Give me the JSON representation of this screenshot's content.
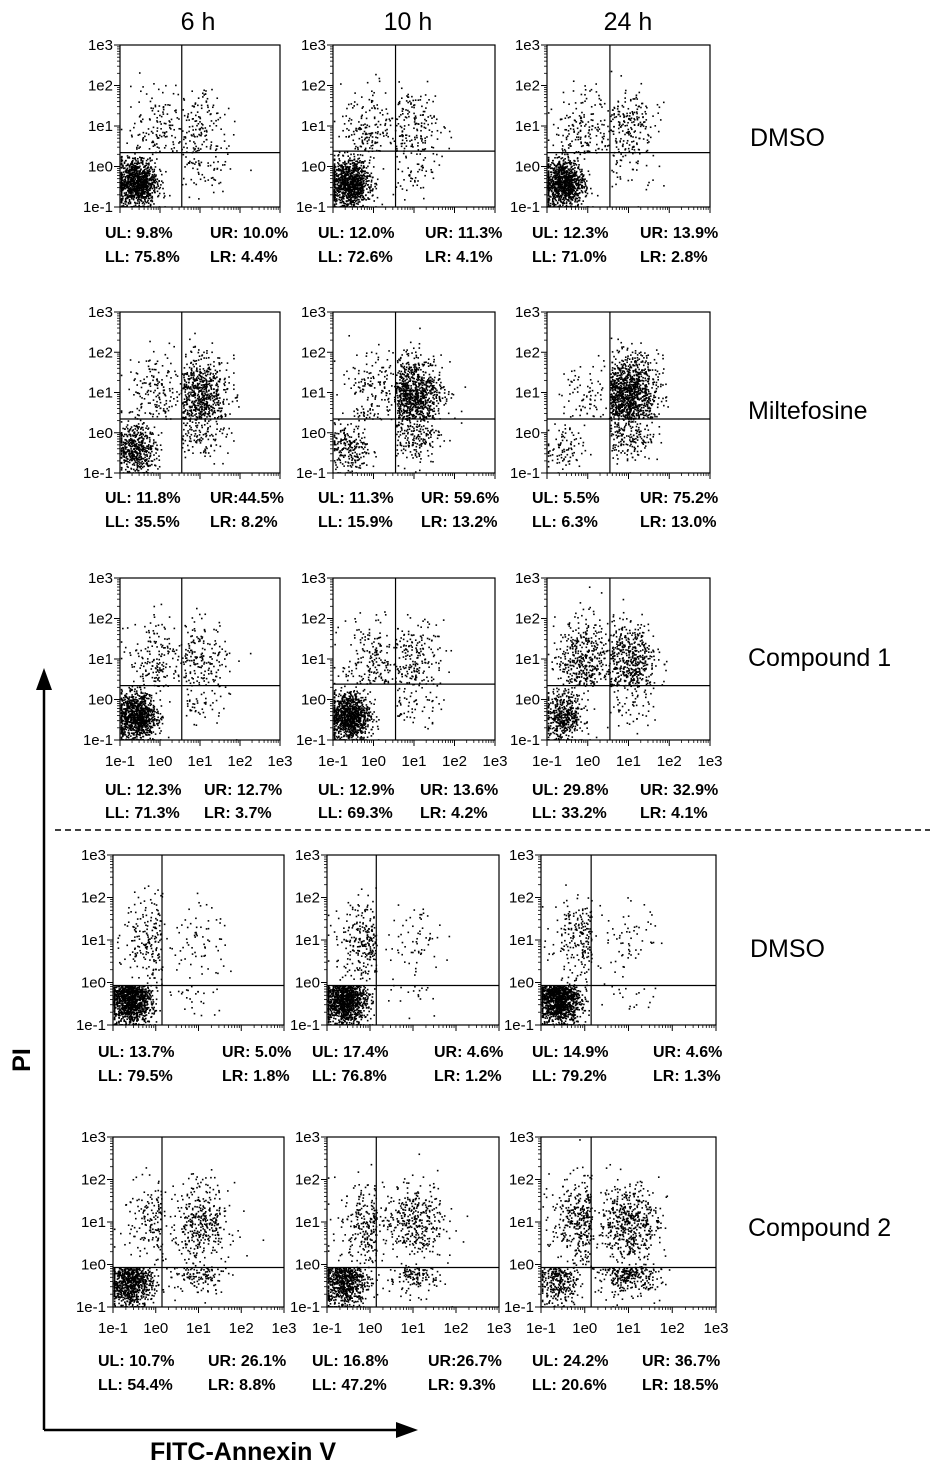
{
  "columns": [
    "6 h",
    "10 h",
    "24 h"
  ],
  "rows": [
    "DMSO",
    "Miltefosine",
    "Compound 1",
    "DMSO",
    "Compound 2"
  ],
  "axis_labels": {
    "x": "FITC-Annexin V",
    "y": "PI"
  },
  "tick_labels": [
    "1e-1",
    "1e0",
    "1e1",
    "1e2",
    "1e3"
  ],
  "chart_data": {
    "type": "scatter",
    "xscale": "log",
    "yscale": "log",
    "xlim": [
      0.1,
      1000
    ],
    "ylim": [
      0.1,
      1000
    ],
    "xlabel": "FITC-Annexin V",
    "ylabel": "PI",
    "panels": [
      {
        "row": "DMSO",
        "time": "6 h",
        "gate_x": 3.5,
        "gate_y": 2.2,
        "stats": [
          [
            "UL: 9.8%",
            "UR: 10.0%"
          ],
          [
            "LL: 75.8%",
            "LR: 4.4%"
          ]
        ]
      },
      {
        "row": "DMSO",
        "time": "10 h",
        "gate_x": 3.5,
        "gate_y": 2.4,
        "stats": [
          [
            "UL: 12.0%",
            "UR: 11.3%"
          ],
          [
            "LL: 72.6%",
            "LR: 4.1%"
          ]
        ]
      },
      {
        "row": "DMSO",
        "time": "24 h",
        "gate_x": 3.5,
        "gate_y": 2.2,
        "stats": [
          [
            "UL: 12.3%",
            "UR: 13.9%"
          ],
          [
            "LL: 71.0%",
            "LR: 2.8%"
          ]
        ]
      },
      {
        "row": "Miltefosine",
        "time": "6 h",
        "gate_x": 3.5,
        "gate_y": 2.2,
        "stats": [
          [
            "UL: 11.8%",
            "UR:44.5%"
          ],
          [
            "LL: 35.5%",
            "LR: 8.2%"
          ]
        ]
      },
      {
        "row": "Miltefosine",
        "time": "10 h",
        "gate_x": 3.5,
        "gate_y": 2.2,
        "stats": [
          [
            "UL: 11.3%",
            "UR: 59.6%"
          ],
          [
            "LL: 15.9%",
            "LR: 13.2%"
          ]
        ]
      },
      {
        "row": "Miltefosine",
        "time": "24 h",
        "gate_x": 3.5,
        "gate_y": 2.2,
        "stats": [
          [
            "UL: 5.5%",
            "UR: 75.2%"
          ],
          [
            "LL: 6.3%",
            "LR: 13.0%"
          ]
        ]
      },
      {
        "row": "Compound 1",
        "time": "6 h",
        "gate_x": 3.5,
        "gate_y": 2.2,
        "stats": [
          [
            "UL: 12.3%",
            "UR: 12.7%"
          ],
          [
            "LL: 71.3%",
            "LR: 3.7%"
          ]
        ]
      },
      {
        "row": "Compound 1",
        "time": "10 h",
        "gate_x": 3.5,
        "gate_y": 2.4,
        "stats": [
          [
            "UL: 12.9%",
            "UR: 13.6%"
          ],
          [
            "LL: 69.3%",
            "LR: 4.2%"
          ]
        ]
      },
      {
        "row": "Compound 1",
        "time": "24 h",
        "gate_x": 3.5,
        "gate_y": 2.2,
        "stats": [
          [
            "UL: 29.8%",
            "UR: 32.9%"
          ],
          [
            "LL: 33.2%",
            "LR: 4.1%"
          ]
        ]
      },
      {
        "row": "DMSO",
        "time": "6 h",
        "gate_x": 1.4,
        "gate_y": 0.85,
        "stats": [
          [
            "UL: 13.7%",
            "UR: 5.0%"
          ],
          [
            "LL: 79.5%",
            "LR: 1.8%"
          ]
        ]
      },
      {
        "row": "DMSO",
        "time": "10 h",
        "gate_x": 1.4,
        "gate_y": 0.85,
        "stats": [
          [
            "UL: 17.4%",
            "UR: 4.6%"
          ],
          [
            "LL: 76.8%",
            "LR: 1.2%"
          ]
        ]
      },
      {
        "row": "DMSO",
        "time": "24 h",
        "gate_x": 1.4,
        "gate_y": 0.85,
        "stats": [
          [
            "UL: 14.9%",
            "UR: 4.6%"
          ],
          [
            "LL: 79.2%",
            "LR: 1.3%"
          ]
        ]
      },
      {
        "row": "Compound 2",
        "time": "6 h",
        "gate_x": 1.4,
        "gate_y": 0.85,
        "stats": [
          [
            "UL: 10.7%",
            "UR: 26.1%"
          ],
          [
            "LL: 54.4%",
            "LR: 8.8%"
          ]
        ]
      },
      {
        "row": "Compound 2",
        "time": "10 h",
        "gate_x": 1.4,
        "gate_y": 0.85,
        "stats": [
          [
            "UL: 16.8%",
            "UR:26.7%"
          ],
          [
            "LL: 47.2%",
            "LR: 9.3%"
          ]
        ]
      },
      {
        "row": "Compound 2",
        "time": "24 h",
        "gate_x": 1.4,
        "gate_y": 0.85,
        "stats": [
          [
            "UL: 24.2%",
            "UR: 36.7%"
          ],
          [
            "LL: 20.6%",
            "LR: 18.5%"
          ]
        ]
      }
    ]
  }
}
